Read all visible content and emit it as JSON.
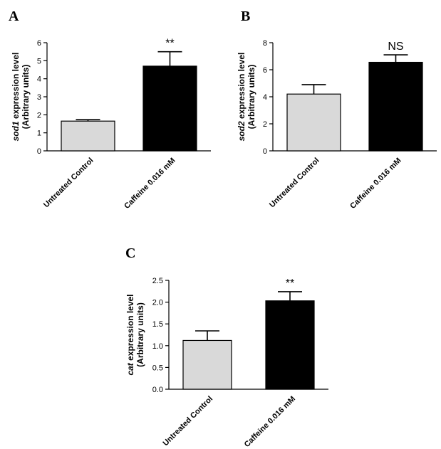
{
  "chart_data": [
    {
      "type": "bar",
      "panel": "A",
      "categories": [
        "Untreated Control",
        "Caffeine 0.016 mM"
      ],
      "values": [
        1.65,
        4.7
      ],
      "errors": [
        0.08,
        0.8
      ],
      "colors": [
        "#d9d9d9",
        "#000000"
      ],
      "ylabel_gene": "sod1",
      "ylabel_rest": " expression level",
      "ylabel_line2": "(Arbitrary units)",
      "ylim": [
        0,
        6
      ],
      "yticks": [
        "0",
        "1",
        "2",
        "3",
        "4",
        "5",
        "6"
      ],
      "significance": "**"
    },
    {
      "type": "bar",
      "panel": "B",
      "categories": [
        "Untreated Control",
        "Caffeine 0.016 mM"
      ],
      "values": [
        4.2,
        6.55
      ],
      "errors": [
        0.7,
        0.55
      ],
      "colors": [
        "#d9d9d9",
        "#000000"
      ],
      "ylabel_gene": "sod2",
      "ylabel_rest": " expression level",
      "ylabel_line2": "(Arbitrary units)",
      "ylim": [
        0,
        8
      ],
      "yticks": [
        "0",
        "2",
        "4",
        "6",
        "8"
      ],
      "significance": "NS"
    },
    {
      "type": "bar",
      "panel": "C",
      "categories": [
        "Untreated Control",
        "Caffeine 0.016 mM"
      ],
      "values": [
        1.12,
        2.03
      ],
      "errors": [
        0.22,
        0.21
      ],
      "colors": [
        "#d9d9d9",
        "#000000"
      ],
      "ylabel_gene": "cat",
      "ylabel_rest": " expression level",
      "ylabel_line2": "(Arbitrary units)",
      "ylim": [
        0,
        2.5
      ],
      "yticks": [
        "0.0",
        "0.5",
        "1.0",
        "1.5",
        "2.0",
        "2.5"
      ],
      "significance": "**"
    }
  ]
}
